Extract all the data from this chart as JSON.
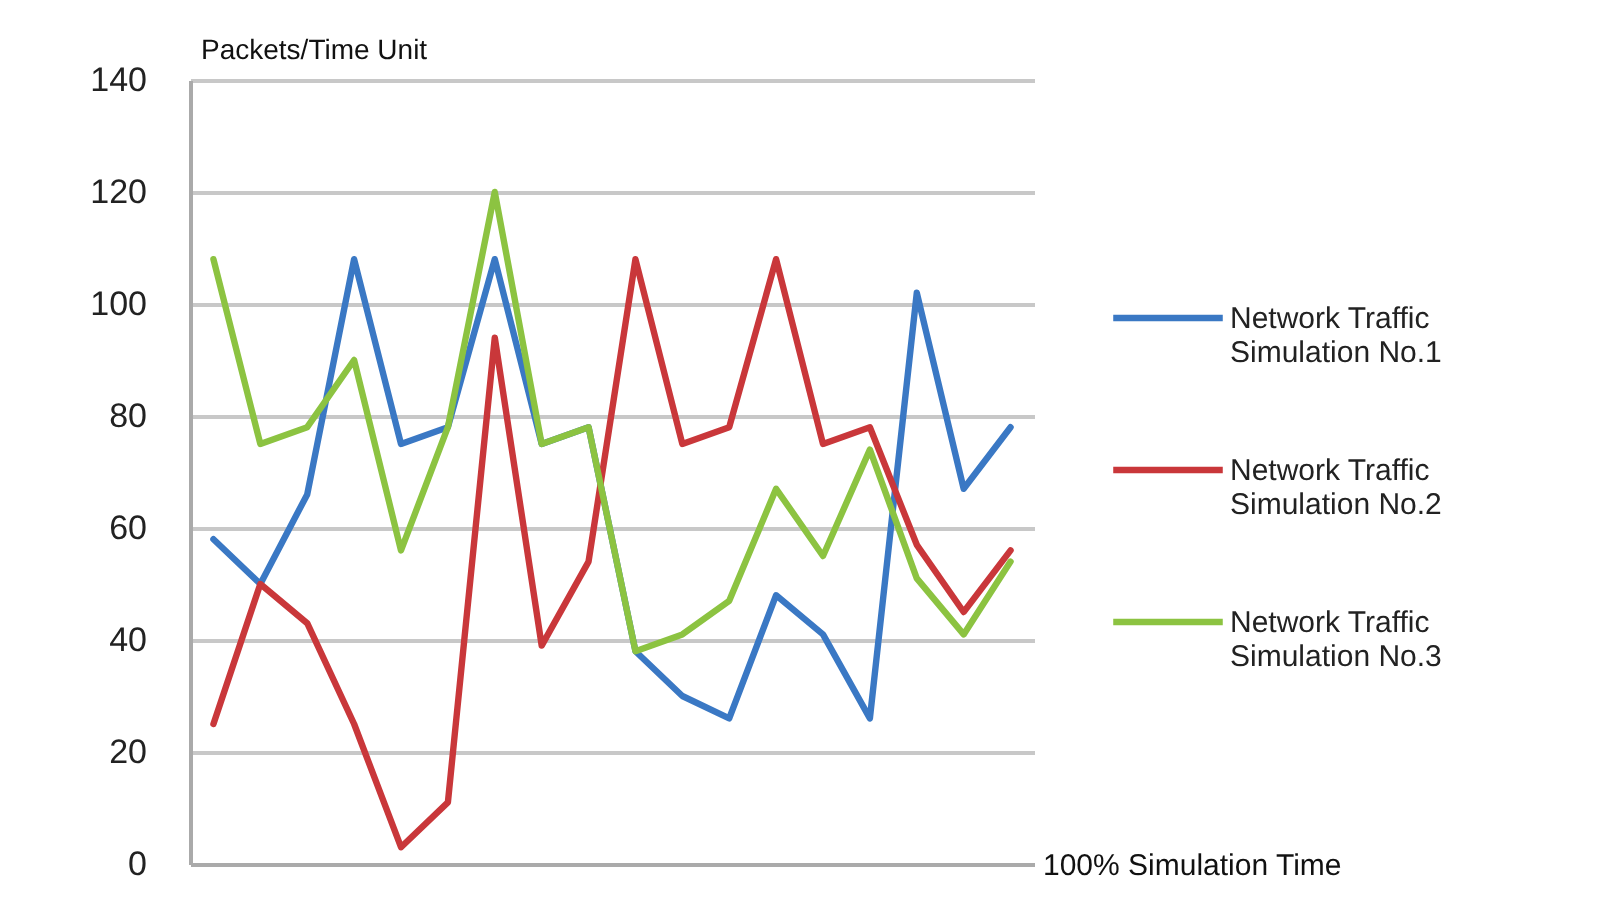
{
  "chart_data": {
    "type": "line",
    "ylabel": "Packets/Time Unit",
    "xlabel": "100% Simulation Time",
    "categories": [
      null,
      null,
      null,
      null,
      null,
      null,
      null,
      null,
      null,
      null,
      null,
      null,
      null,
      null,
      null,
      null,
      null,
      null
    ],
    "series": [
      {
        "name": "Network Traffic Simulation No.1",
        "color": "#3a78c4",
        "values": [
          58,
          50,
          66,
          108,
          75,
          78,
          108,
          75,
          78,
          38,
          30,
          26,
          48,
          41,
          26,
          102,
          67,
          78
        ]
      },
      {
        "name": "Network Traffic Simulation No.2",
        "color": "#c9373a",
        "values": [
          25,
          50,
          43,
          25,
          3,
          11,
          94,
          39,
          54,
          108,
          75,
          78,
          108,
          75,
          78,
          57,
          45,
          56
        ]
      },
      {
        "name": "Network Traffic Simulation No.3",
        "color": "#8cc341",
        "values": [
          108,
          75,
          78,
          90,
          56,
          78,
          120,
          75,
          78,
          38,
          41,
          47,
          67,
          55,
          74,
          51,
          41,
          54
        ]
      }
    ],
    "ylim": [
      0,
      140
    ],
    "yticks": [
      0,
      20,
      40,
      60,
      80,
      100,
      120,
      140
    ],
    "grid": "y",
    "legend": "right",
    "marker": "none",
    "line_style": "solid"
  }
}
